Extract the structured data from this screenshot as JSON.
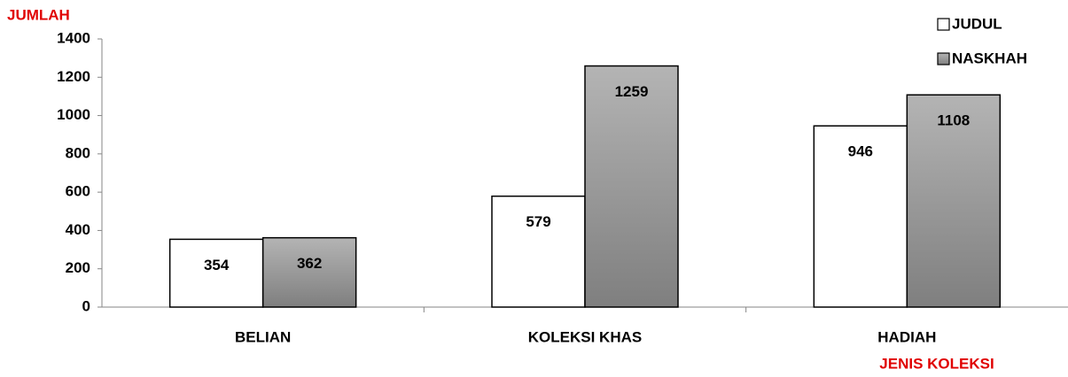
{
  "chart_data": {
    "type": "bar",
    "y_axis_label": "JUMLAH",
    "x_axis_label": "JENIS KOLEKSI",
    "categories": [
      "BELIAN",
      "KOLEKSI KHAS",
      "HADIAH"
    ],
    "series": [
      {
        "name": "JUDUL",
        "color": "#ffffff",
        "values": [
          354,
          579,
          946
        ]
      },
      {
        "name": "NASKHAH",
        "color": "#b4b4b4",
        "values": [
          362,
          1259,
          1108
        ]
      }
    ],
    "ylim": [
      0,
      1400
    ],
    "yticks": [
      0,
      200,
      400,
      600,
      800,
      1000,
      1200,
      1400
    ],
    "legend": "upper right"
  }
}
